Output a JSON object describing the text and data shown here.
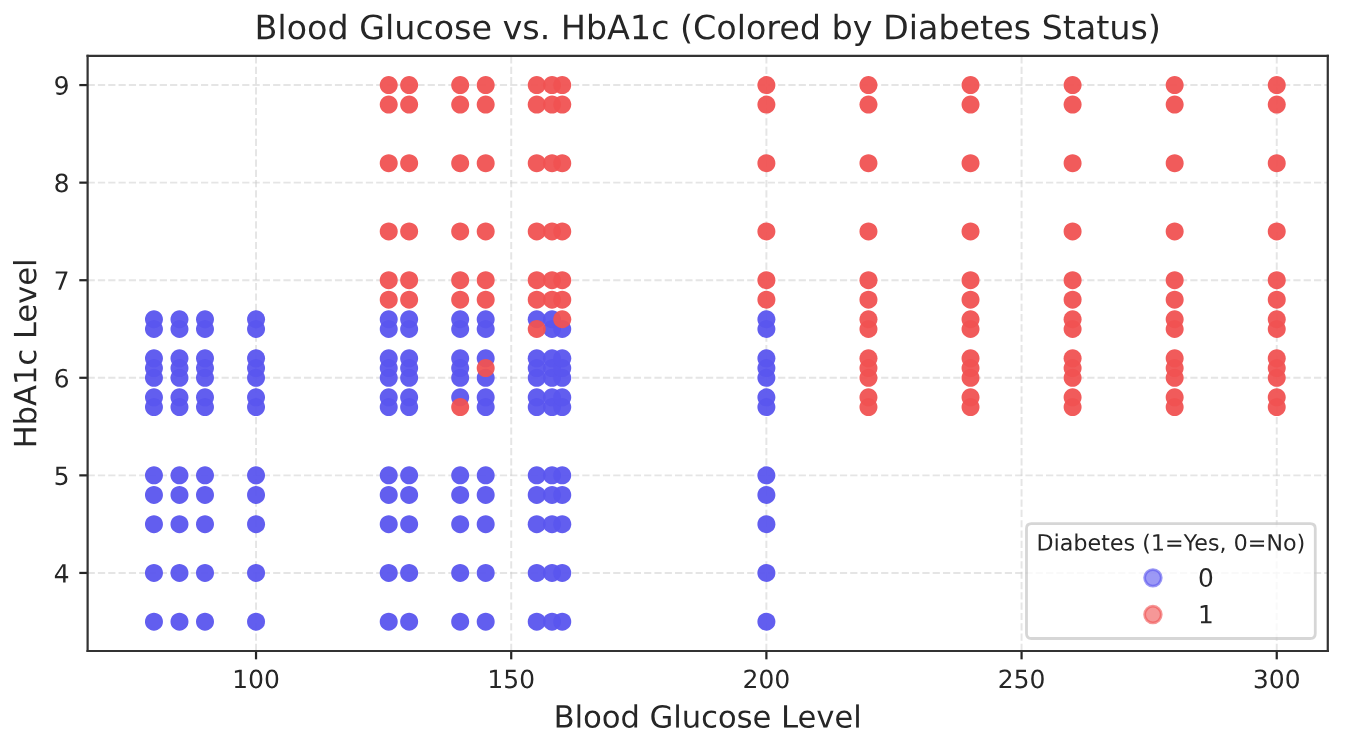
{
  "chart_data": {
    "type": "scatter",
    "title": "Blood Glucose vs. HbA1c (Colored by Diabetes Status)",
    "xlabel": "Blood Glucose Level",
    "ylabel": "HbA1c Level",
    "legend_title": "Diabetes (1=Yes, 0=No)",
    "legend": "bottom right",
    "grid": true,
    "marker": "circle",
    "xlim": [
      67,
      310
    ],
    "xticks": [
      100,
      150,
      200,
      250,
      300
    ],
    "ylim": [
      3.2,
      9.3
    ],
    "yticks": [
      4,
      5,
      6,
      7,
      8,
      9
    ],
    "series": [
      {
        "name": "0",
        "color": "#5a55ee",
        "x": [
          80,
          80,
          80,
          80,
          80,
          80,
          80,
          80,
          80,
          80,
          80,
          80,
          85,
          85,
          85,
          85,
          85,
          85,
          85,
          85,
          85,
          85,
          85,
          85,
          90,
          90,
          90,
          90,
          90,
          90,
          90,
          90,
          90,
          90,
          90,
          90,
          100,
          100,
          100,
          100,
          100,
          100,
          100,
          100,
          100,
          100,
          100,
          100,
          126,
          126,
          126,
          126,
          126,
          126,
          126,
          126,
          126,
          126,
          126,
          126,
          130,
          130,
          130,
          130,
          130,
          130,
          130,
          130,
          130,
          130,
          130,
          130,
          140,
          140,
          140,
          140,
          140,
          140,
          140,
          140,
          140,
          140,
          140,
          145,
          145,
          145,
          145,
          145,
          145,
          145,
          145,
          145,
          145,
          145,
          155,
          155,
          155,
          155,
          155,
          155,
          155,
          155,
          155,
          155,
          155,
          158,
          158,
          158,
          158,
          158,
          158,
          158,
          158,
          158,
          158,
          158,
          158,
          160,
          160,
          160,
          160,
          160,
          160,
          160,
          160,
          160,
          160,
          160,
          200,
          200,
          200,
          200,
          200,
          200,
          200,
          200,
          200,
          200,
          200,
          200
        ],
        "values": [
          3.5,
          4,
          4.5,
          4.8,
          5,
          5.7,
          5.8,
          6,
          6.1,
          6.2,
          6.5,
          6.6,
          3.5,
          4,
          4.5,
          4.8,
          5,
          5.7,
          5.8,
          6,
          6.1,
          6.2,
          6.5,
          6.6,
          3.5,
          4,
          4.5,
          4.8,
          5,
          5.7,
          5.8,
          6,
          6.1,
          6.2,
          6.5,
          6.6,
          3.5,
          4,
          4.5,
          4.8,
          5,
          5.7,
          5.8,
          6,
          6.1,
          6.2,
          6.5,
          6.6,
          3.5,
          4,
          4.5,
          4.8,
          5,
          5.7,
          5.8,
          6,
          6.1,
          6.2,
          6.5,
          6.6,
          3.5,
          4,
          4.5,
          4.8,
          5,
          5.7,
          5.8,
          6,
          6.1,
          6.2,
          6.5,
          6.6,
          3.5,
          4,
          4.5,
          4.8,
          5,
          5.8,
          6,
          6.1,
          6.2,
          6.5,
          6.6,
          3.5,
          4,
          4.5,
          4.8,
          5,
          5.7,
          5.8,
          6,
          6.2,
          6.5,
          6.6,
          3.5,
          4,
          4.5,
          4.8,
          5,
          5.7,
          5.8,
          6,
          6.1,
          6.2,
          6.6,
          3.5,
          4,
          4.5,
          4.8,
          5,
          5.7,
          5.8,
          6,
          6.1,
          6.2,
          6.5,
          6.6,
          3.5,
          4,
          4.5,
          4.8,
          5,
          5.7,
          5.8,
          6,
          6.1,
          6.2,
          6.5,
          3.5,
          4,
          4.5,
          4.8,
          5,
          5.7,
          5.8,
          6,
          6.1,
          6.2,
          6.5,
          6.6
        ]
      },
      {
        "name": "1",
        "color": "#f05252",
        "x": [
          126,
          126,
          126,
          126,
          126,
          126,
          130,
          130,
          130,
          130,
          130,
          130,
          140,
          140,
          140,
          140,
          140,
          140,
          145,
          145,
          145,
          145,
          145,
          145,
          155,
          155,
          155,
          155,
          155,
          155,
          158,
          158,
          158,
          158,
          158,
          158,
          160,
          160,
          160,
          160,
          160,
          160,
          200,
          200,
          200,
          200,
          200,
          200,
          140,
          145,
          155,
          160,
          220,
          220,
          220,
          220,
          220,
          220,
          220,
          220,
          220,
          220,
          220,
          220,
          220,
          240,
          240,
          240,
          240,
          240,
          240,
          240,
          240,
          240,
          240,
          240,
          240,
          240,
          260,
          260,
          260,
          260,
          260,
          260,
          260,
          260,
          260,
          260,
          260,
          260,
          260,
          280,
          280,
          280,
          280,
          280,
          280,
          280,
          280,
          280,
          280,
          280,
          280,
          280,
          300,
          300,
          300,
          300,
          300,
          300,
          300,
          300,
          300,
          300,
          300,
          300,
          300
        ],
        "values": [
          6.8,
          7,
          7.5,
          8.2,
          8.8,
          9,
          6.8,
          7,
          7.5,
          8.2,
          8.8,
          9,
          6.8,
          7,
          7.5,
          8.2,
          8.8,
          9,
          6.8,
          7,
          7.5,
          8.2,
          8.8,
          9,
          6.8,
          7,
          7.5,
          8.2,
          8.8,
          9,
          6.8,
          7,
          7.5,
          8.2,
          8.8,
          9,
          6.8,
          7,
          7.5,
          8.2,
          8.8,
          9,
          6.8,
          7,
          7.5,
          8.2,
          8.8,
          9,
          5.7,
          6.1,
          6.5,
          6.6,
          5.7,
          5.8,
          6,
          6.1,
          6.2,
          6.5,
          6.6,
          6.8,
          7,
          7.5,
          8.2,
          8.8,
          9,
          5.7,
          5.8,
          6,
          6.1,
          6.2,
          6.5,
          6.6,
          6.8,
          7,
          7.5,
          8.2,
          8.8,
          9,
          5.7,
          5.8,
          6,
          6.1,
          6.2,
          6.5,
          6.6,
          6.8,
          7,
          7.5,
          8.2,
          8.8,
          9,
          5.7,
          5.8,
          6,
          6.1,
          6.2,
          6.5,
          6.6,
          6.8,
          7,
          7.5,
          8.2,
          8.8,
          9,
          5.7,
          5.8,
          6,
          6.1,
          6.2,
          6.5,
          6.6,
          6.8,
          7,
          7.5,
          8.2,
          8.8,
          9
        ]
      }
    ]
  }
}
